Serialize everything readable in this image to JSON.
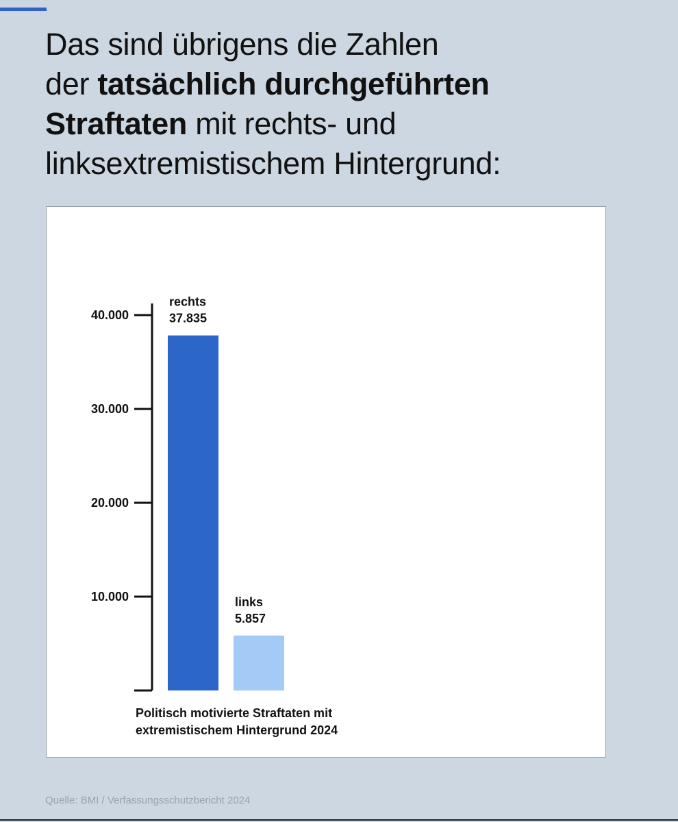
{
  "headline": {
    "line1": "Das sind übrigens die Zahlen",
    "line2_normal": "der ",
    "line2_bold": "tatsächlich durchgeführten",
    "line3_bold": "Straftaten",
    "line3_normal": " mit rechts- und",
    "line4": "linksextremistischem Hintergrund:"
  },
  "colors": {
    "background": "#cdd7e1",
    "accent": "#2f63c6",
    "rechts": "#2c66c8",
    "links": "#a4caf6"
  },
  "chart_data": {
    "type": "bar",
    "categories": [
      "rechts",
      "links"
    ],
    "values": [
      37835,
      5857
    ],
    "value_labels": [
      "37.835",
      "5.857"
    ],
    "colors": [
      "#2c66c8",
      "#a4caf6"
    ],
    "ylim": [
      0,
      40000
    ],
    "yticks": [
      10000,
      20000,
      30000,
      40000
    ],
    "ytick_labels": [
      "10.000",
      "20.000",
      "30.000",
      "40.000"
    ],
    "caption_lines": [
      "Politisch motivierte Straftaten mit",
      "extremistischem Hintergrund 2024"
    ],
    "grid": false,
    "legend": "none"
  },
  "source": "Quelle: BMI / Verfassungsschutzbericht 2024"
}
